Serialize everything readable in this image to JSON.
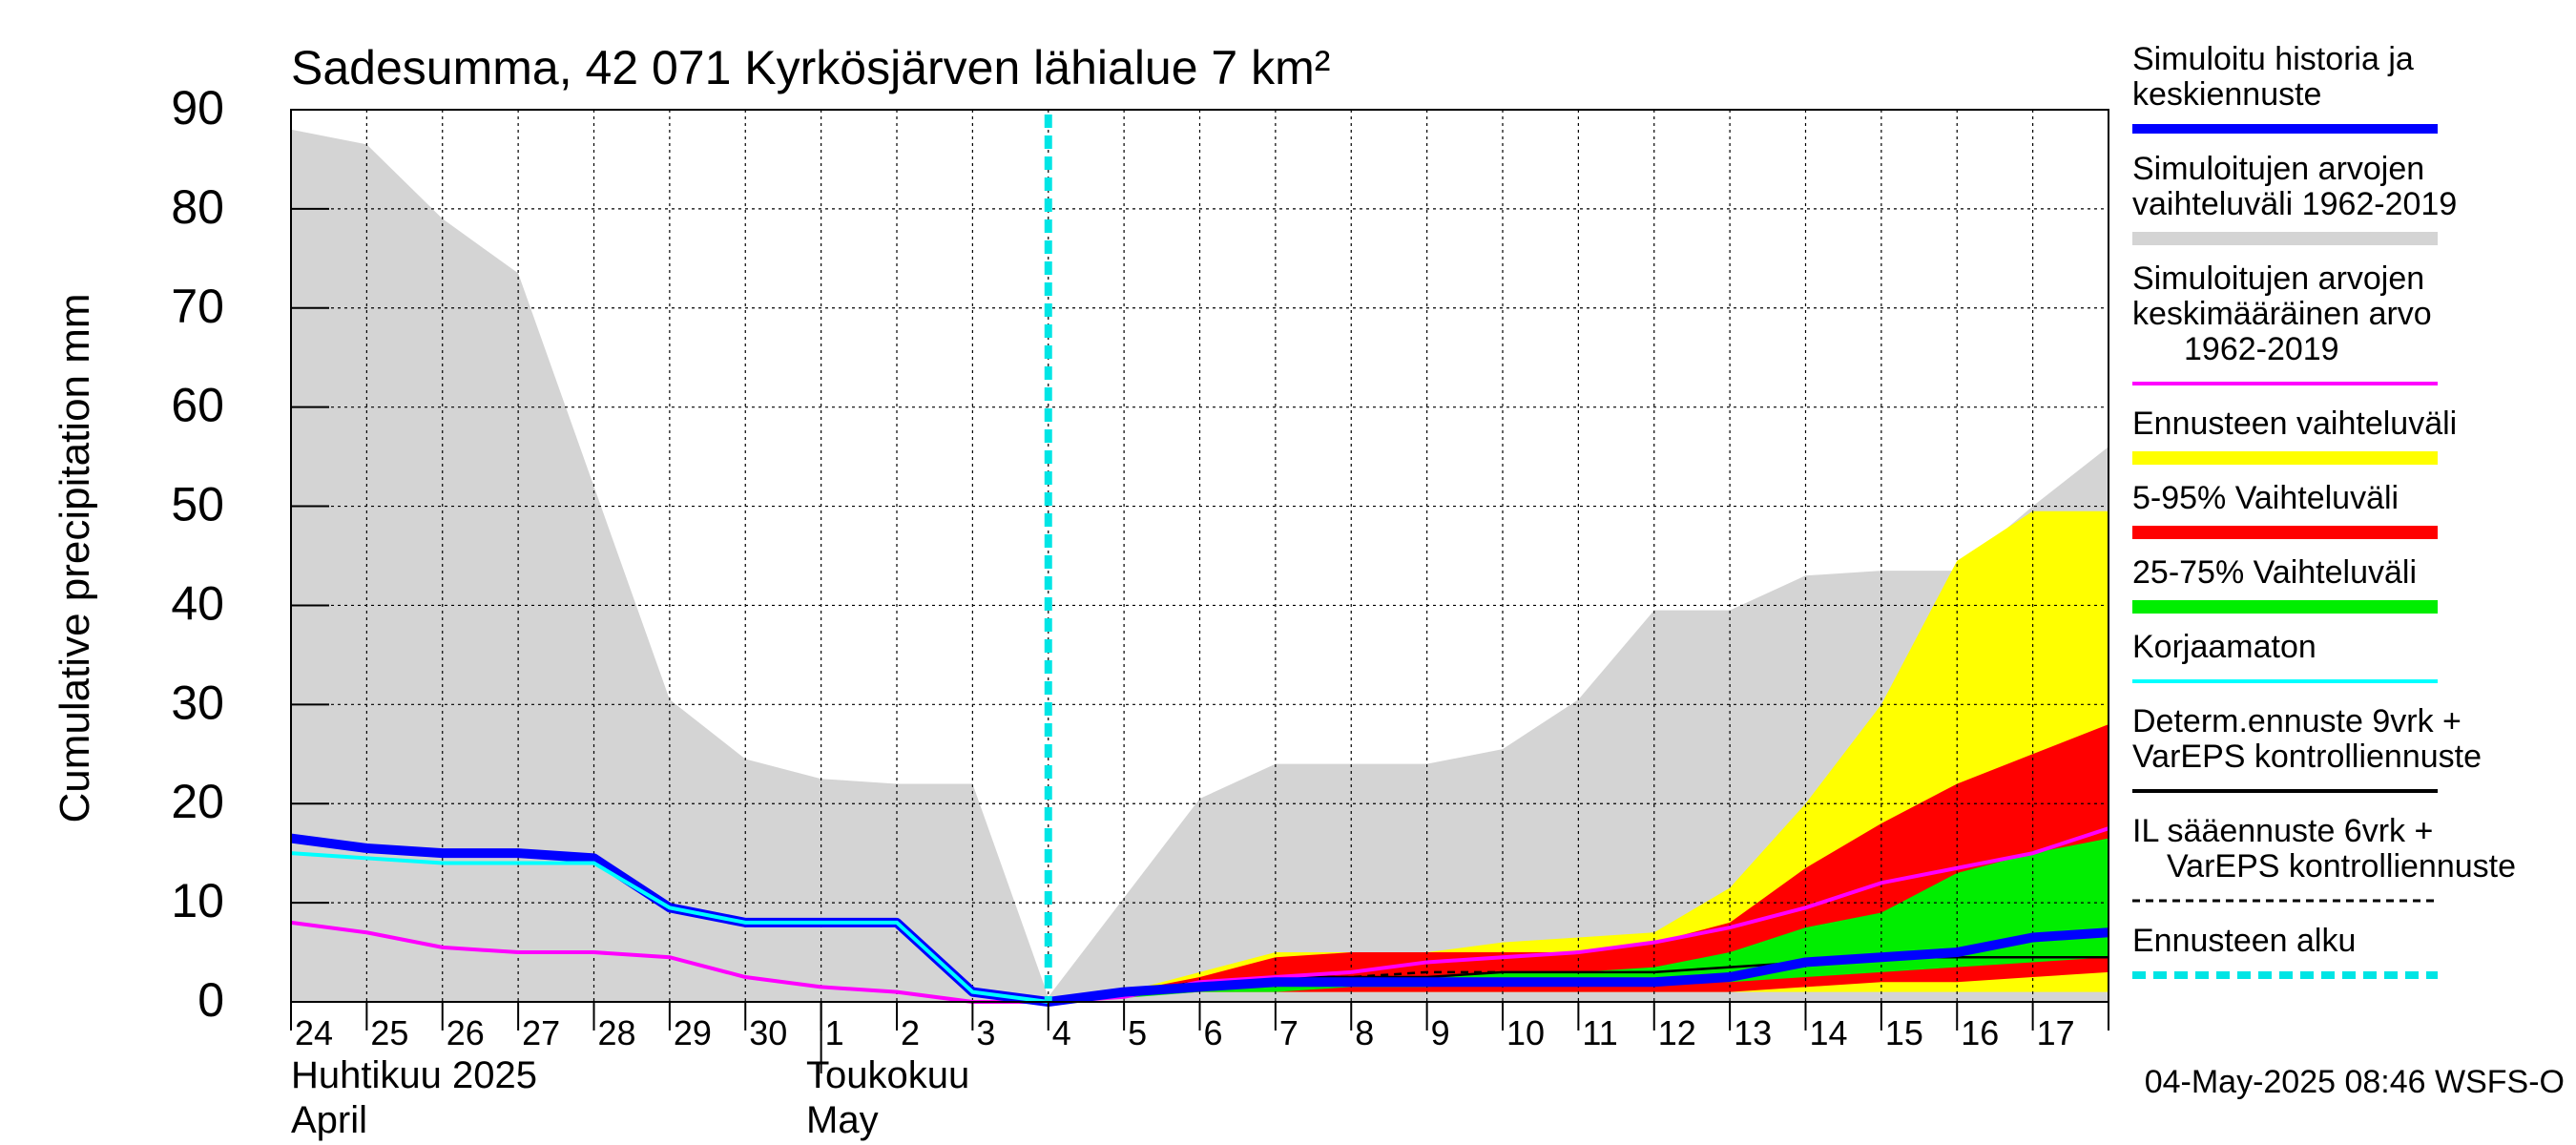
{
  "chart_data": {
    "type": "area",
    "title": "Sadesumma, 42 071 Kyrkösjärven lähialue 7 km²",
    "ylabel": "Cumulative precipitation   mm",
    "ylim": [
      0,
      90
    ],
    "yticks": [
      0,
      10,
      20,
      30,
      40,
      50,
      60,
      70,
      80,
      90
    ],
    "xlim": [
      0,
      24
    ],
    "x_tick_labels": [
      "24",
      "25",
      "26",
      "27",
      "28",
      "29",
      "30",
      "1",
      "2",
      "3",
      "4",
      "5",
      "6",
      "7",
      "8",
      "9",
      "10",
      "11",
      "12",
      "13",
      "14",
      "15",
      "16",
      "17"
    ],
    "month_labels": [
      {
        "line1": "Huhtikuu  2025",
        "line2": "April"
      },
      {
        "line1": "Toukokuu",
        "line2": "May"
      }
    ],
    "forecast_start_x": 10,
    "timestamp": "04-May-2025 08:46 WSFS-O",
    "grid": true,
    "legend_position": "right",
    "colors": {
      "history_range": "#d4d4d4",
      "mean": "#ff00ff",
      "simulated": "#0000ff",
      "uncorrected": "#00ffff",
      "forecast_range": "#ffff00",
      "range_5_95": "#ff0000",
      "range_25_75": "#00ee00",
      "determ": "#000000",
      "forecast_start": "#00e5e5"
    },
    "legend": [
      {
        "label_lines": [
          "Simuloitu historia ja",
          "keskiennuste"
        ],
        "key": "simulated",
        "style": "thick"
      },
      {
        "label_lines": [
          "Simuloitujen arvojen",
          "vaihteluväli 1962-2019"
        ],
        "key": "history_range",
        "style": "band"
      },
      {
        "label_lines": [
          "Simuloitujen arvojen",
          "keskimääräinen arvo",
          "   1962-2019"
        ],
        "key": "mean",
        "style": "line"
      },
      {
        "label_lines": [
          "Ennusteen vaihteluväli"
        ],
        "key": "forecast_range",
        "style": "band"
      },
      {
        "label_lines": [
          "5-95% Vaihteluväli"
        ],
        "key": "range_5_95",
        "style": "band"
      },
      {
        "label_lines": [
          "25-75% Vaihteluväli"
        ],
        "key": "range_25_75",
        "style": "band"
      },
      {
        "label_lines": [
          "Korjaamaton"
        ],
        "key": "uncorrected",
        "style": "line"
      },
      {
        "label_lines": [
          "Determ.ennuste 9vrk  +",
          "VarEPS kontrolliennuste"
        ],
        "key": "determ",
        "style": "line"
      },
      {
        "label_lines": [
          "IL sääennuste 6vrk  +",
          "  VarEPS kontrolliennuste"
        ],
        "key": "determ",
        "style": "dashed"
      },
      {
        "label_lines": [
          "Ennusteen alku"
        ],
        "key": "forecast_start",
        "style": "dotted"
      }
    ],
    "history_range": {
      "x": [
        0,
        1,
        2,
        3,
        4,
        5,
        6,
        7,
        8,
        9,
        10,
        11,
        12,
        13,
        14,
        15,
        16,
        17,
        18,
        19,
        20,
        21,
        22,
        23,
        24
      ],
      "upper": [
        88,
        86.5,
        79,
        73.5,
        52,
        30.5,
        24.5,
        22.5,
        22,
        22,
        0.5,
        10.5,
        20.5,
        24,
        24,
        24,
        25.5,
        30.5,
        39.5,
        39.5,
        43,
        43.5,
        43.5,
        50,
        56
      ],
      "lower": [
        0,
        0,
        0,
        0,
        0,
        0,
        0,
        0,
        0,
        0,
        0,
        0,
        0,
        0,
        0,
        0,
        0,
        0,
        0,
        0,
        0,
        0,
        0,
        0,
        0
      ]
    },
    "mean_series": {
      "x": [
        0,
        1,
        2,
        3,
        4,
        5,
        6,
        7,
        8,
        9,
        10,
        11,
        12,
        13,
        14,
        15,
        16,
        17,
        18,
        19,
        20,
        21,
        22,
        23,
        24
      ],
      "y": [
        8,
        7,
        5.5,
        5,
        5,
        4.5,
        2.5,
        1.5,
        1,
        0,
        0,
        0.5,
        2,
        2.5,
        3,
        4,
        4.5,
        5,
        6,
        7.5,
        9.5,
        12,
        13.5,
        15,
        17.5
      ]
    },
    "simulated_series": {
      "x": [
        0,
        1,
        2,
        3,
        4,
        5,
        6,
        7,
        8,
        9,
        10,
        11,
        12,
        13,
        14,
        15,
        16,
        17,
        18,
        19,
        20,
        21,
        22,
        23,
        24
      ],
      "y": [
        16.5,
        15.5,
        15,
        15,
        14.5,
        9.5,
        8,
        8,
        8,
        1,
        0,
        1,
        1.5,
        2,
        2,
        2,
        2,
        2,
        2,
        2.5,
        4,
        4.5,
        5,
        6.5,
        7
      ]
    },
    "uncorrected_series": {
      "x": [
        0,
        1,
        2,
        3,
        4,
        5,
        6,
        7,
        8,
        9,
        10
      ],
      "y": [
        15,
        14.5,
        14,
        14,
        14,
        9.5,
        8,
        8,
        8,
        1,
        0
      ]
    },
    "forecast_band": {
      "x": [
        10,
        11,
        12,
        13,
        14,
        15,
        16,
        17,
        18,
        19,
        20,
        21,
        22,
        23,
        24
      ],
      "upper": [
        0,
        1,
        3,
        5,
        5,
        5,
        6,
        6.5,
        7,
        11.5,
        20,
        30,
        44.5,
        49.5,
        49.5
      ],
      "lower": [
        0,
        0.5,
        1,
        1,
        1,
        1,
        1,
        1,
        1,
        1,
        1,
        1,
        1,
        1,
        1
      ]
    },
    "band_5_95": {
      "x": [
        10,
        11,
        12,
        13,
        14,
        15,
        16,
        17,
        18,
        19,
        20,
        21,
        22,
        23,
        24
      ],
      "upper": [
        0,
        1,
        2.5,
        4.5,
        5,
        5,
        5,
        5,
        6,
        8,
        13.5,
        18,
        22,
        25,
        28
      ],
      "lower": [
        0,
        0.5,
        1,
        1,
        1,
        1,
        1,
        1,
        1,
        1,
        1.5,
        2,
        2,
        2.5,
        3
      ]
    },
    "band_25_75": {
      "x": [
        10,
        11,
        12,
        13,
        14,
        15,
        16,
        17,
        18,
        19,
        20,
        21,
        22,
        23,
        24
      ],
      "upper": [
        0,
        0.7,
        1.5,
        2,
        2,
        2.5,
        3,
        3,
        3.5,
        5,
        7.5,
        9,
        13,
        15,
        16.5
      ],
      "lower": [
        0,
        0.4,
        1,
        1,
        1.5,
        1.5,
        2,
        2,
        2,
        2,
        2.5,
        3,
        3.5,
        4,
        4.5
      ]
    },
    "determ_series": {
      "x": [
        10,
        11,
        12,
        13,
        14,
        15,
        16,
        17,
        18,
        19,
        20,
        21,
        22,
        23,
        24
      ],
      "y": [
        0,
        1,
        2,
        2.5,
        2.5,
        2.5,
        3,
        3,
        3,
        3.5,
        4,
        4.5,
        4.5,
        4.5,
        4.5
      ]
    },
    "il_series": {
      "x": [
        10,
        11,
        12,
        13,
        14,
        15,
        16
      ],
      "y": [
        0,
        1,
        2,
        2.5,
        2.5,
        3,
        3
      ]
    }
  }
}
